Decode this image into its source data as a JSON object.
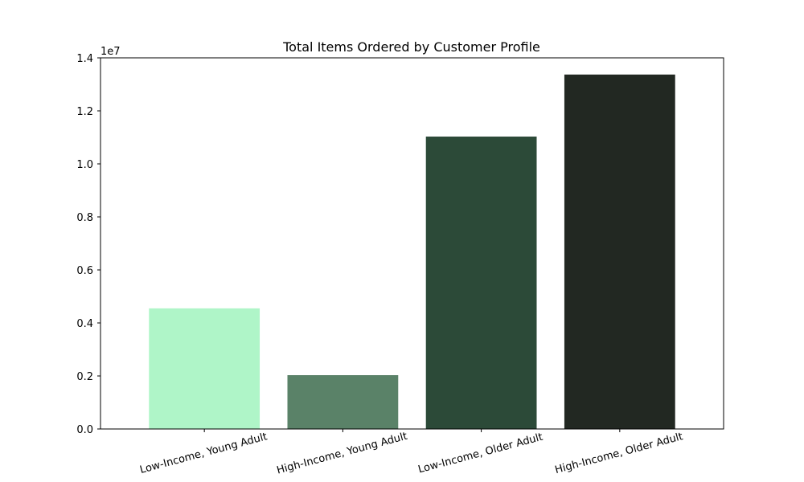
{
  "chart_data": {
    "type": "bar",
    "title": "Total Items Ordered by Customer Profile",
    "xlabel": "",
    "ylabel": "",
    "y_offset_label": "1e7",
    "categories": [
      "Low-Income, Young Adult",
      "High-Income, Young Adult",
      "Low-Income, Older Adult",
      "High-Income, Older Adult"
    ],
    "values": [
      4550000,
      2030000,
      11030000,
      13370000
    ],
    "colors": [
      "#aff5c8",
      "#5a8268",
      "#2c4a38",
      "#222822"
    ],
    "ylim": [
      0,
      14000000
    ],
    "yticks": [
      0,
      2000000,
      4000000,
      6000000,
      8000000,
      10000000,
      12000000,
      14000000
    ],
    "ytick_labels": [
      "0.0",
      "0.2",
      "0.4",
      "0.6",
      "0.8",
      "1.0",
      "1.2",
      "1.4"
    ],
    "grid": false,
    "legend": "none"
  }
}
